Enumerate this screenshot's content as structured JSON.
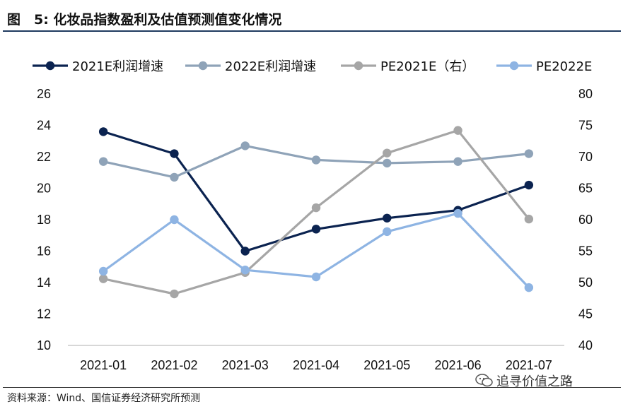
{
  "header": {
    "title": "图　5:  化妆品指数盈利及估值预测值变化情况"
  },
  "footer": {
    "source": "资料来源：Wind、国信证券经济研究所预测",
    "watermark": "追寻价值之路"
  },
  "chart_data": {
    "type": "line",
    "title": "",
    "categories": [
      "2021-01",
      "2021-02",
      "2021-03",
      "2021-04",
      "2021-05",
      "2021-06",
      "2021-07"
    ],
    "y_left": {
      "ylim": [
        10,
        26
      ],
      "ticks": [
        "10",
        "12",
        "14",
        "16",
        "18",
        "20",
        "22",
        "24",
        "26"
      ]
    },
    "y_right": {
      "ylim": [
        40,
        80
      ],
      "ticks": [
        "40",
        "45",
        "50",
        "55",
        "60",
        "65",
        "70",
        "75",
        "80"
      ]
    },
    "legend_position": "top",
    "grid": false,
    "series": [
      {
        "name": "2021E利润增速",
        "axis": "left",
        "color": "#0b2350",
        "values": [
          23.6,
          22.2,
          16.0,
          17.4,
          18.1,
          18.6,
          20.2
        ]
      },
      {
        "name": "2022E利润增速",
        "axis": "left",
        "color": "#8fa3b8",
        "values": [
          21.7,
          20.7,
          22.7,
          21.8,
          21.6,
          21.7,
          22.2
        ]
      },
      {
        "name": "PE2021E（右）",
        "axis": "right",
        "color": "#a6a6a6",
        "values": [
          50.6,
          48.2,
          51.6,
          61.9,
          70.6,
          74.2,
          60.1
        ]
      },
      {
        "name": "PE2022E",
        "axis": "right",
        "color": "#8eb4e3",
        "values": [
          51.8,
          60.0,
          52.0,
          50.9,
          58.1,
          61.0,
          49.2
        ]
      }
    ]
  }
}
